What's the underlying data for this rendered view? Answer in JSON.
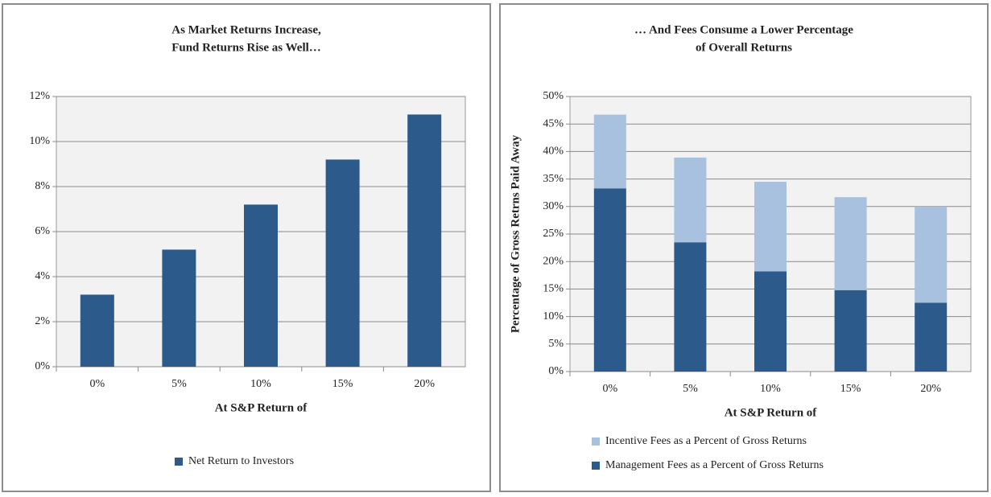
{
  "chart_data": [
    {
      "type": "bar",
      "title": [
        "As Market Returns Increase,",
        "Fund Returns Rise as Well…"
      ],
      "xlabel": "At S&P Return of",
      "categories": [
        "0%",
        "5%",
        "10%",
        "15%",
        "20%"
      ],
      "series": [
        {
          "name": "Net Return to Investors",
          "color": "#2c5a8a",
          "values": [
            3.2,
            5.2,
            7.2,
            9.2,
            11.2
          ]
        }
      ],
      "ylim": [
        0,
        12
      ],
      "yticks": [
        {
          "value": 0,
          "label": "0%"
        },
        {
          "value": 2,
          "label": "2%"
        },
        {
          "value": 4,
          "label": "4%"
        },
        {
          "value": 6,
          "label": "6%"
        },
        {
          "value": 8,
          "label": "8%"
        },
        {
          "value": 10,
          "label": "10%"
        },
        {
          "value": 12,
          "label": "12%"
        }
      ],
      "grid": true
    },
    {
      "type": "stacked_bar",
      "title": [
        "… And Fees Consume a Lower Percentage",
        "of Overall Returns"
      ],
      "xlabel": "At S&P Return of",
      "ylabel": "Percentage of Gross Retrns Paid Away",
      "categories": [
        "0%",
        "5%",
        "10%",
        "15%",
        "20%"
      ],
      "series": [
        {
          "name": "Management Fees as a Percent of Gross Returns",
          "color": "#2c5a8a",
          "values": [
            33.3,
            23.5,
            18.2,
            14.8,
            12.5
          ]
        },
        {
          "name": "Incentive Fees as a Percent of Gross Returns",
          "color": "#a7c1de",
          "values": [
            13.4,
            15.4,
            16.3,
            16.9,
            17.5
          ]
        }
      ],
      "ylim": [
        0,
        50
      ],
      "yticks": [
        {
          "value": 0,
          "label": "0%"
        },
        {
          "value": 5,
          "label": "5%"
        },
        {
          "value": 10,
          "label": "10%"
        },
        {
          "value": 15,
          "label": "15%"
        },
        {
          "value": 20,
          "label": "20%"
        },
        {
          "value": 25,
          "label": "25%"
        },
        {
          "value": 30,
          "label": "30%"
        },
        {
          "value": 35,
          "label": "35%"
        },
        {
          "value": 40,
          "label": "40%"
        },
        {
          "value": 45,
          "label": "45%"
        },
        {
          "value": 50,
          "label": "50%"
        }
      ],
      "grid": true
    }
  ]
}
